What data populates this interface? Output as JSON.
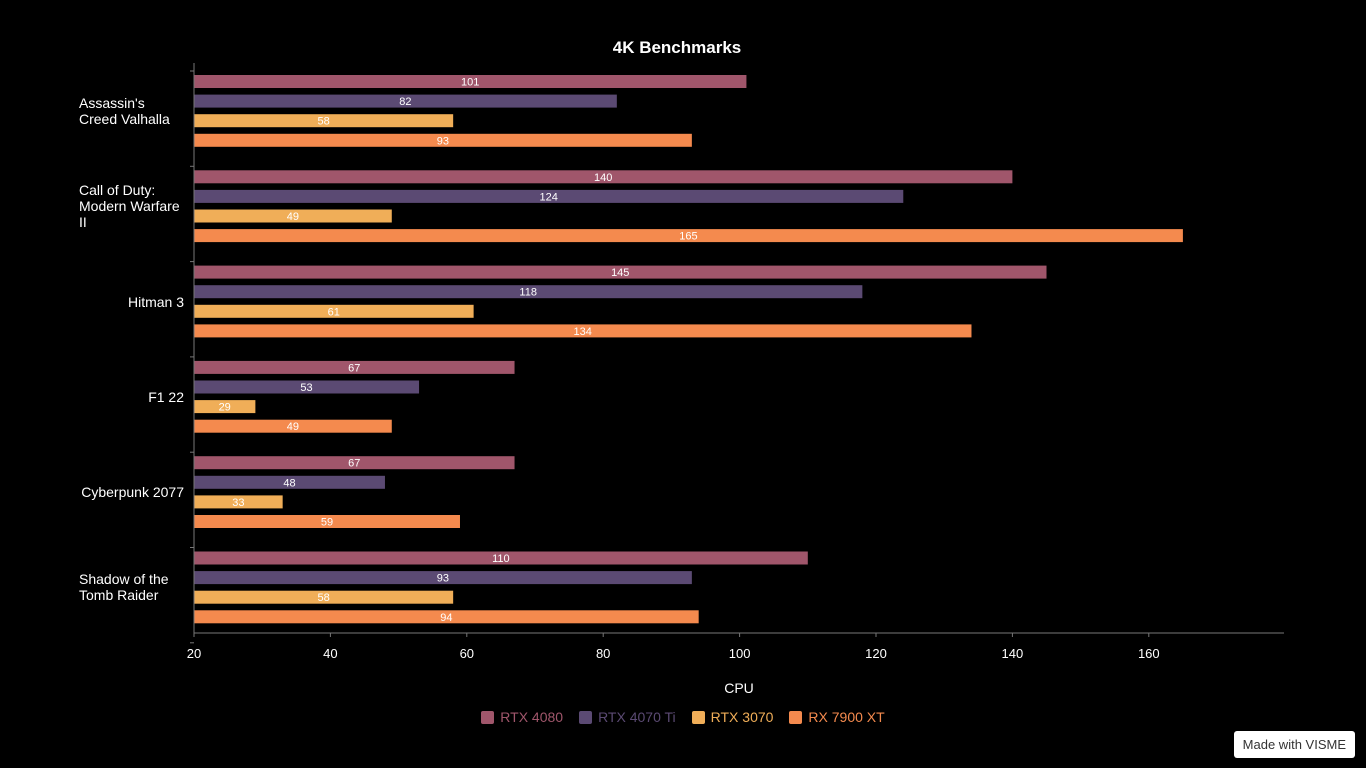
{
  "chart_data": {
    "type": "bar",
    "orientation": "horizontal",
    "title": "4K Benchmarks",
    "xlabel": "CPU",
    "ylabel": "",
    "xlim": [
      20,
      180
    ],
    "xticks": [
      20,
      40,
      60,
      80,
      100,
      120,
      140,
      160
    ],
    "categories": [
      "Assassin's Creed Valhalla",
      "Call of Duty: Modern Warfare II",
      "Hitman 3",
      "F1 22",
      "Cyberpunk 2077",
      "Shadow of the Tomb Raider"
    ],
    "category_lines": [
      [
        "Assassin's",
        "Creed Valhalla"
      ],
      [
        "Call of Duty:",
        "Modern Warfare",
        "II"
      ],
      [
        "Hitman 3"
      ],
      [
        "F1 22"
      ],
      [
        "Cyberpunk 2077"
      ],
      [
        "Shadow of the",
        "Tomb Raider"
      ]
    ],
    "series": [
      {
        "name": "RTX 4080",
        "color": "#A0566B",
        "values": [
          101,
          140,
          145,
          67,
          67,
          110
        ]
      },
      {
        "name": "RTX 4070 Ti",
        "color": "#5B4A73",
        "values": [
          82,
          124,
          118,
          53,
          48,
          93
        ]
      },
      {
        "name": "RTX 3070",
        "color": "#F0AE58",
        "values": [
          58,
          49,
          61,
          29,
          33,
          58
        ]
      },
      {
        "name": "RX 7900 XT",
        "color": "#F48A4E",
        "values": [
          93,
          165,
          134,
          49,
          59,
          94
        ]
      }
    ],
    "data_labels": [
      [
        "101",
        "140",
        "145",
        "67",
        "67",
        "110"
      ],
      [
        "82",
        "124",
        "118",
        "53",
        "48",
        "93"
      ],
      [
        "58",
        "49",
        "61",
        "29",
        "33",
        "58"
      ],
      [
        "93",
        "165",
        "134",
        "49",
        "59",
        "94"
      ]
    ],
    "grid": false,
    "legend_position": "bottom-center"
  },
  "watermark": "Made with VISME"
}
